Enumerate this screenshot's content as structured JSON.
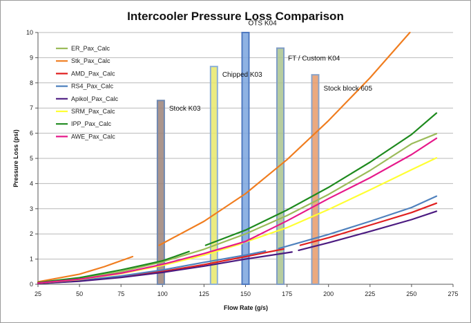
{
  "chart_data": {
    "type": "line",
    "title": "Intercooler Pressure Loss Comparison",
    "xlabel": "Flow Rate (g/s)",
    "ylabel": "Pressure Loss (psi)",
    "xlim": [
      25,
      275
    ],
    "ylim": [
      0,
      10
    ],
    "xticks": [
      "25",
      "50",
      "75",
      "100",
      "125",
      "150",
      "175",
      "200",
      "225",
      "250",
      "275"
    ],
    "yticks": [
      "0",
      "1",
      "2",
      "3",
      "4",
      "5",
      "6",
      "7",
      "8",
      "9",
      "10"
    ],
    "grid": "horizontal",
    "legend_position": "top-left",
    "series": [
      {
        "name": "ER_Pax_Calc",
        "color": "#9bbb59",
        "segments": [
          [
            [
              25,
              0.06
            ],
            [
              50,
              0.22
            ],
            [
              75,
              0.5
            ],
            [
              100,
              0.89
            ],
            [
              125,
              1.39
            ],
            [
              150,
              2.0
            ],
            [
              175,
              2.73
            ],
            [
              200,
              3.57
            ],
            [
              225,
              4.52
            ],
            [
              250,
              5.58
            ],
            [
              265,
              5.98
            ]
          ]
        ]
      },
      {
        "name": "Stk_Pax_Calc",
        "color": "#f07d1f",
        "segments": [
          [
            [
              25,
              0.1
            ],
            [
              50,
              0.4
            ],
            [
              65,
              0.7
            ],
            [
              82,
              1.1
            ]
          ],
          [
            [
              98,
              1.55
            ],
            [
              125,
              2.5
            ],
            [
              150,
              3.6
            ],
            [
              175,
              4.95
            ],
            [
              200,
              6.5
            ],
            [
              225,
              8.2
            ],
            [
              249,
              10.0
            ]
          ]
        ]
      },
      {
        "name": "AMD_Pax_Calc",
        "color": "#e02020",
        "segments": [
          [
            [
              25,
              0.03
            ],
            [
              50,
              0.13
            ],
            [
              75,
              0.3
            ],
            [
              100,
              0.51
            ],
            [
              125,
              0.78
            ],
            [
              150,
              1.1
            ],
            [
              173,
              1.4
            ]
          ],
          [
            [
              183,
              1.55
            ],
            [
              200,
              1.85
            ],
            [
              225,
              2.35
            ],
            [
              250,
              2.85
            ],
            [
              265,
              3.22
            ]
          ]
        ]
      },
      {
        "name": "RS4_Pax_Calc",
        "color": "#4f81bd",
        "segments": [
          [
            [
              25,
              0.04
            ],
            [
              50,
              0.15
            ],
            [
              75,
              0.33
            ],
            [
              100,
              0.57
            ],
            [
              125,
              0.87
            ],
            [
              150,
              1.16
            ],
            [
              162,
              1.32
            ]
          ],
          [
            [
              170,
              1.42
            ],
            [
              200,
              1.98
            ],
            [
              225,
              2.5
            ],
            [
              250,
              3.05
            ],
            [
              265,
              3.5
            ]
          ]
        ]
      },
      {
        "name": "Apikol_Pax_Calc",
        "color": "#4b1a80",
        "segments": [
          [
            [
              25,
              0.03
            ],
            [
              50,
              0.12
            ],
            [
              75,
              0.27
            ],
            [
              100,
              0.47
            ],
            [
              125,
              0.72
            ],
            [
              150,
              1.0
            ],
            [
              178,
              1.28
            ]
          ],
          [
            [
              182,
              1.35
            ],
            [
              200,
              1.65
            ],
            [
              225,
              2.1
            ],
            [
              250,
              2.57
            ],
            [
              265,
              2.9
            ]
          ]
        ]
      },
      {
        "name": "SRM_Pax_Calc",
        "color": "#ffff33",
        "segments": [
          [
            [
              25,
              0.05
            ],
            [
              50,
              0.19
            ],
            [
              75,
              0.42
            ],
            [
              100,
              0.75
            ],
            [
              125,
              1.16
            ],
            [
              148,
              1.62
            ]
          ],
          [
            [
              150,
              1.68
            ],
            [
              175,
              2.25
            ],
            [
              200,
              2.97
            ],
            [
              225,
              3.75
            ],
            [
              250,
              4.55
            ],
            [
              265,
              5.02
            ]
          ]
        ]
      },
      {
        "name": "IPP_Pax_Calc",
        "color": "#1e8a1e",
        "segments": [
          [
            [
              25,
              0.07
            ],
            [
              50,
              0.26
            ],
            [
              75,
              0.57
            ],
            [
              100,
              0.93
            ],
            [
              116,
              1.3
            ]
          ],
          [
            [
              126,
              1.55
            ],
            [
              150,
              2.15
            ],
            [
              175,
              2.95
            ],
            [
              200,
              3.85
            ],
            [
              225,
              4.85
            ],
            [
              250,
              5.95
            ],
            [
              265,
              6.8
            ]
          ]
        ]
      },
      {
        "name": "AWE_Pax_Calc",
        "color": "#e6198a",
        "segments": [
          [
            [
              25,
              0.05
            ],
            [
              50,
              0.2
            ],
            [
              75,
              0.44
            ],
            [
              100,
              0.79
            ],
            [
              125,
              1.22
            ],
            [
              150,
              1.7
            ],
            [
              175,
              2.52
            ],
            [
              200,
              3.4
            ],
            [
              225,
              4.23
            ],
            [
              250,
              5.15
            ],
            [
              265,
              5.8
            ]
          ]
        ]
      }
    ],
    "bars": [
      {
        "label": "Stock K03",
        "x": 99,
        "value": 7.3,
        "color": "#9c8278",
        "border": "#6f88b0"
      },
      {
        "label": "Chipped K03",
        "x": 131,
        "value": 8.65,
        "color": "#e8e86a",
        "border": "#8db0d6"
      },
      {
        "label": "OTS K04",
        "x": 150,
        "value": 10,
        "color": "#7aa4de",
        "border": "#4f79c0"
      },
      {
        "label": "FT / Custom K04",
        "x": 171,
        "value": 9.38,
        "color": "#aac48e",
        "border": "#7f9cc6"
      },
      {
        "label": "Stock block 605",
        "x": 192,
        "value": 8.32,
        "color": "#e89a68",
        "border": "#8aa3c8"
      }
    ]
  }
}
